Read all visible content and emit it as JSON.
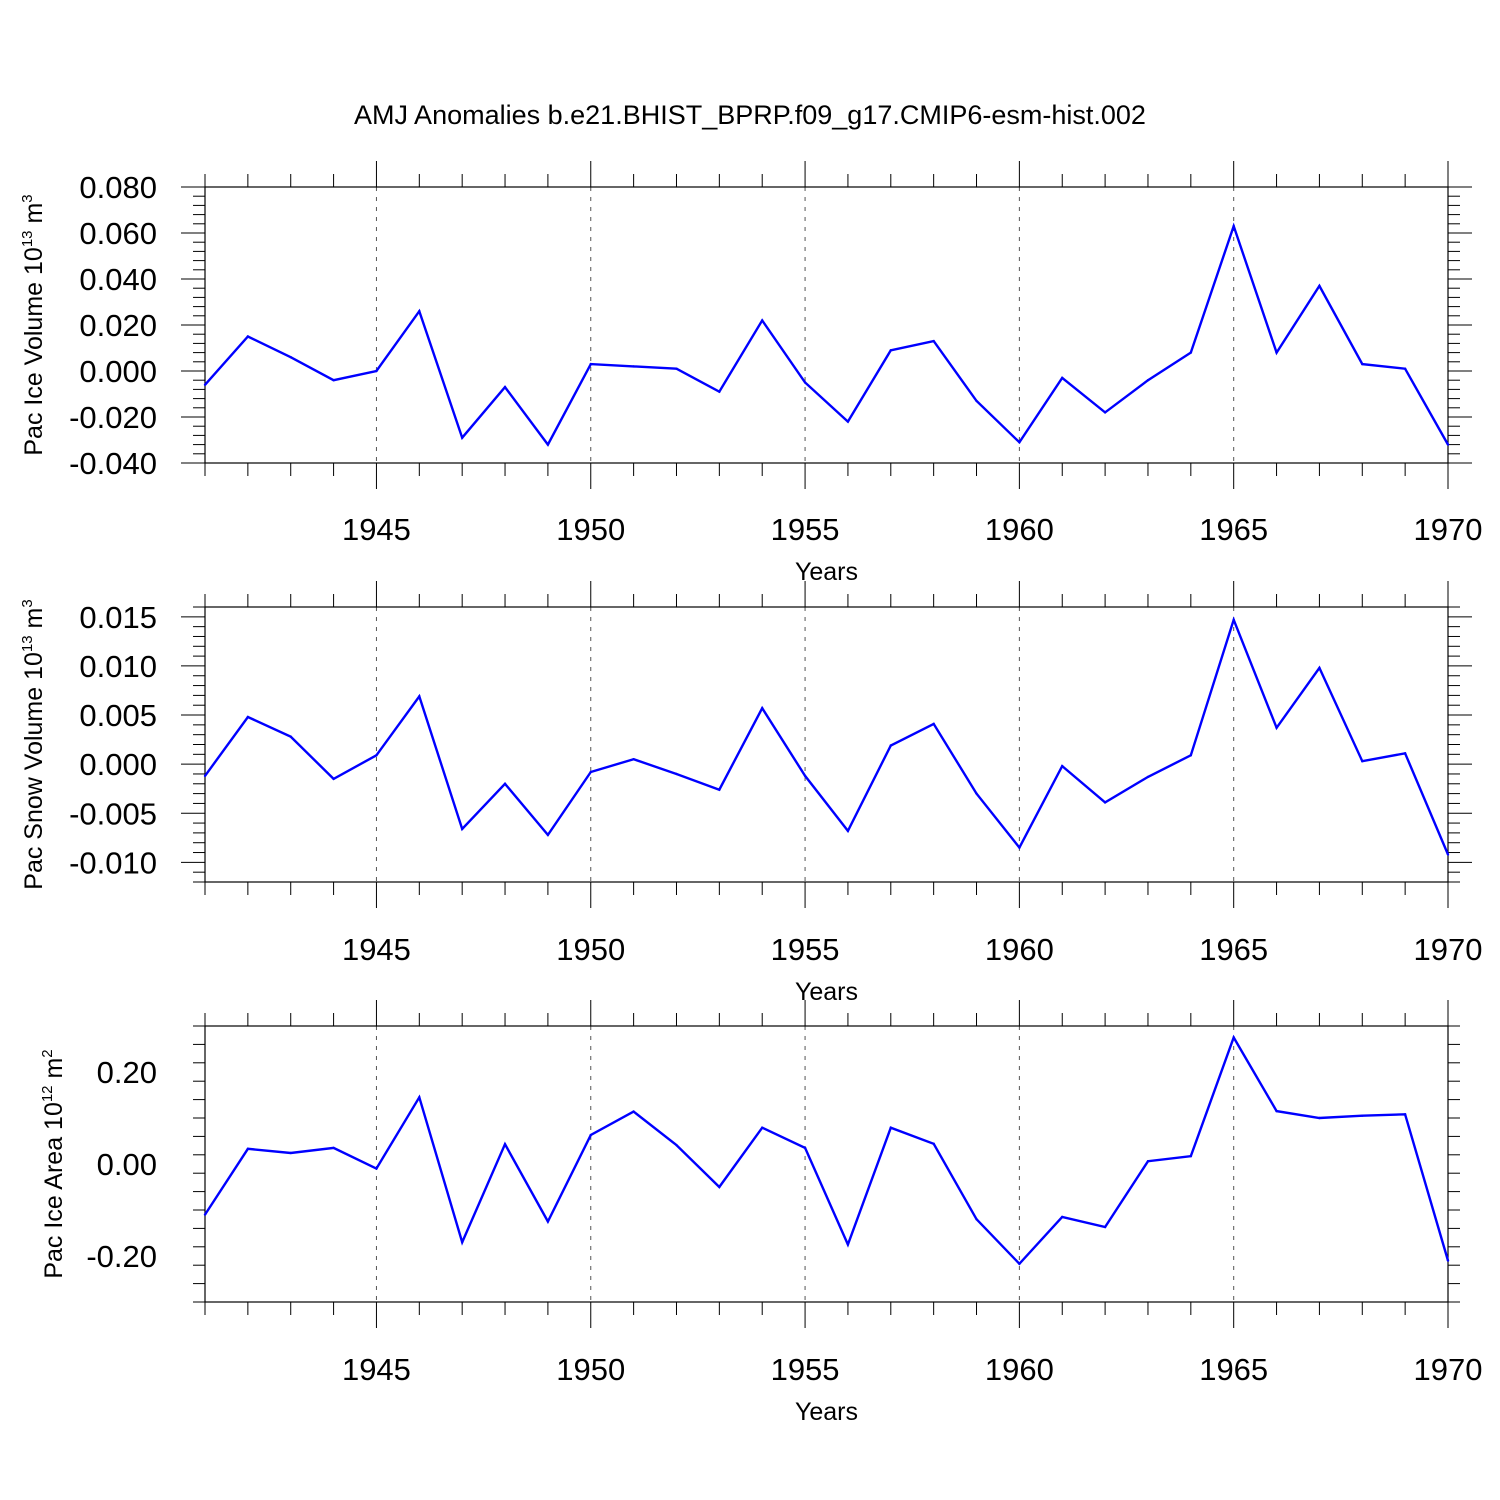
{
  "title": "AMJ Anomalies b.e21.BHIST_BPRP.f09_g17.CMIP6-esm-hist.002",
  "line_color": "#0000ff",
  "chart_data": [
    {
      "type": "line",
      "ylabel": {
        "main": "Pac Ice Volume 10",
        "exp": "13",
        "unit": " m",
        "unit_exp": "3"
      },
      "xlabel": "Years",
      "xlim": [
        1941,
        1970
      ],
      "ylim": [
        -0.04,
        0.08
      ],
      "xticks": [
        "1945",
        "1950",
        "1955",
        "1960",
        "1965",
        "1970"
      ],
      "yticks": [
        "0.080",
        "0.060",
        "0.040",
        "0.020",
        "0.000",
        "-0.020",
        "-0.040"
      ],
      "yticks_values": [
        0.08,
        0.06,
        0.04,
        0.02,
        0.0,
        -0.02,
        -0.04
      ],
      "grid_x": [
        1945,
        1950,
        1955,
        1960,
        1965
      ],
      "x": [
        1941,
        1942,
        1943,
        1944,
        1945,
        1946,
        1947,
        1948,
        1949,
        1950,
        1951,
        1952,
        1953,
        1954,
        1955,
        1956,
        1957,
        1958,
        1959,
        1960,
        1961,
        1962,
        1963,
        1964,
        1965,
        1966,
        1967,
        1968,
        1969,
        1970
      ],
      "values": [
        -0.006,
        0.015,
        0.006,
        -0.004,
        0.0,
        0.026,
        -0.029,
        -0.007,
        -0.032,
        0.003,
        0.002,
        0.001,
        -0.009,
        0.022,
        -0.005,
        -0.022,
        0.009,
        0.013,
        -0.013,
        -0.031,
        -0.003,
        -0.018,
        -0.004,
        0.008,
        0.063,
        0.008,
        0.037,
        0.003,
        0.001,
        -0.032
      ]
    },
    {
      "type": "line",
      "ylabel": {
        "main": "Pac Snow Volume 10",
        "exp": "13",
        "unit": " m",
        "unit_exp": "3"
      },
      "xlabel": "Years",
      "xlim": [
        1941,
        1970
      ],
      "ylim": [
        -0.012,
        0.016
      ],
      "xticks": [
        "1945",
        "1950",
        "1955",
        "1960",
        "1965",
        "1970"
      ],
      "yticks": [
        "0.015",
        "0.010",
        "0.005",
        "0.000",
        "-0.005",
        "-0.010"
      ],
      "yticks_values": [
        0.015,
        0.01,
        0.005,
        0.0,
        -0.005,
        -0.01
      ],
      "grid_x": [
        1945,
        1950,
        1955,
        1960,
        1965
      ],
      "x": [
        1941,
        1942,
        1943,
        1944,
        1945,
        1946,
        1947,
        1948,
        1949,
        1950,
        1951,
        1952,
        1953,
        1954,
        1955,
        1956,
        1957,
        1958,
        1959,
        1960,
        1961,
        1962,
        1963,
        1964,
        1965,
        1966,
        1967,
        1968,
        1969,
        1970
      ],
      "values": [
        -0.0012,
        0.0048,
        0.0028,
        -0.0015,
        0.0009,
        0.0069,
        -0.0066,
        -0.002,
        -0.0072,
        -0.0008,
        0.0005,
        -0.001,
        -0.0026,
        0.0057,
        -0.0012,
        -0.0068,
        0.0019,
        0.0041,
        -0.003,
        -0.0085,
        -0.0002,
        -0.0039,
        -0.0013,
        0.0009,
        0.0147,
        0.0037,
        0.0098,
        0.0003,
        0.0011,
        -0.0092
      ]
    },
    {
      "type": "line",
      "ylabel": {
        "main": "Pac Ice Area 10",
        "exp": "12",
        "unit": " m",
        "unit_exp": "2"
      },
      "xlabel": "Years",
      "xlim": [
        1941,
        1970
      ],
      "ylim": [
        -0.3,
        0.3
      ],
      "xticks": [
        "1945",
        "1950",
        "1955",
        "1960",
        "1965",
        "1970"
      ],
      "yticks": [
        "0.20",
        "0.00",
        "-0.20"
      ],
      "yticks_values": [
        0.2,
        0.0,
        -0.2
      ],
      "grid_x": [
        1945,
        1950,
        1955,
        1960,
        1965
      ],
      "x": [
        1941,
        1942,
        1943,
        1944,
        1945,
        1946,
        1947,
        1948,
        1949,
        1950,
        1951,
        1952,
        1953,
        1954,
        1955,
        1956,
        1957,
        1958,
        1959,
        1960,
        1961,
        1962,
        1963,
        1964,
        1965,
        1966,
        1967,
        1968,
        1969,
        1970
      ],
      "values": [
        -0.11,
        0.033,
        0.024,
        0.035,
        -0.01,
        0.145,
        -0.17,
        0.043,
        -0.125,
        0.063,
        0.114,
        0.041,
        -0.05,
        0.079,
        0.035,
        -0.175,
        0.079,
        0.044,
        -0.12,
        -0.217,
        -0.115,
        -0.137,
        0.006,
        0.017,
        0.275,
        0.115,
        0.1,
        0.105,
        0.108,
        -0.21
      ]
    }
  ]
}
